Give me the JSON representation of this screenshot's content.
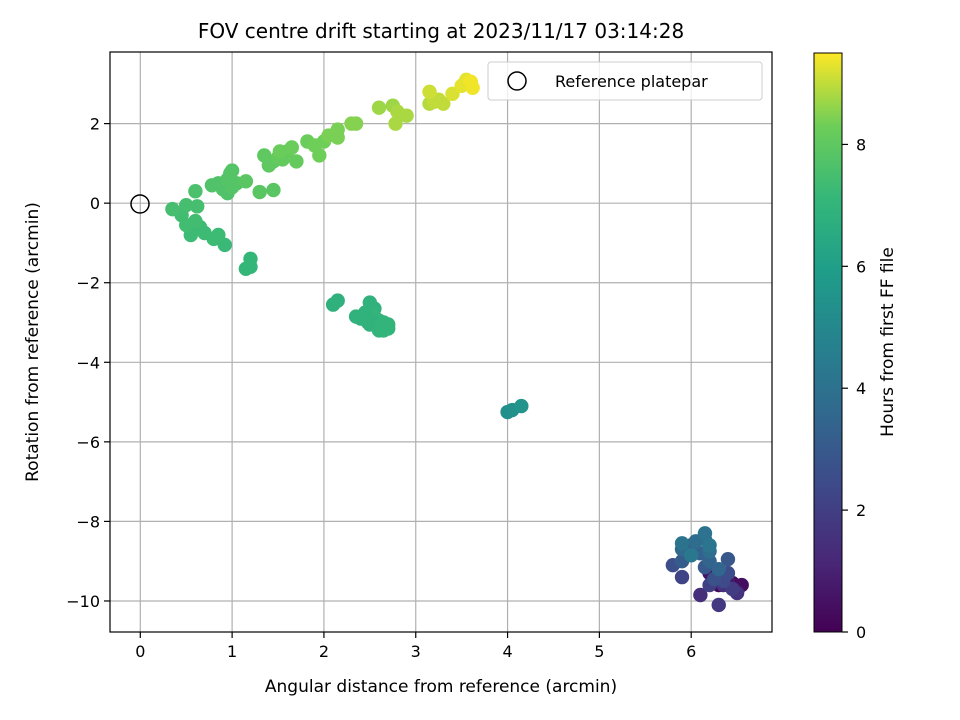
{
  "chart_data": {
    "type": "scatter",
    "title": "FOV centre drift starting at 2023/11/17 03:14:28",
    "xlabel": "Angular distance from reference (arcmin)",
    "ylabel": "Rotation from reference (arcmin)",
    "xlim": [
      -0.33,
      6.88
    ],
    "ylim": [
      -10.78,
      3.8
    ],
    "xticks": [
      0,
      1,
      2,
      3,
      4,
      5,
      6
    ],
    "yticks": [
      -10,
      -8,
      -6,
      -4,
      -2,
      0,
      2
    ],
    "xtick_labels": [
      "0",
      "1",
      "2",
      "3",
      "4",
      "5",
      "6"
    ],
    "ytick_labels": [
      "−10",
      "−8",
      "−6",
      "−4",
      "−2",
      "0",
      "2"
    ],
    "grid": true,
    "legend": {
      "placement": "top-right",
      "entries": [
        {
          "label": "Reference platepar",
          "marker": "open-circle"
        }
      ]
    },
    "reference_point": {
      "x": 0,
      "y": 0
    },
    "colorbar": {
      "label": "Hours from first FF file",
      "colormap": "viridis",
      "range": [
        0,
        9.5
      ],
      "ticks": [
        0,
        2,
        4,
        6,
        8
      ],
      "tick_labels": [
        "0",
        "2",
        "4",
        "6",
        "8"
      ]
    },
    "points": [
      [
        6.3,
        -9.6,
        0.2
      ],
      [
        6.45,
        -9.55,
        0.3
      ],
      [
        6.55,
        -9.6,
        0.4
      ],
      [
        6.5,
        -9.75,
        0.5
      ],
      [
        6.2,
        -9.3,
        0.6
      ],
      [
        6.4,
        -9.5,
        0.7
      ],
      [
        6.3,
        -9.4,
        1.2
      ],
      [
        6.1,
        -9.85,
        1.4
      ],
      [
        6.35,
        -9.6,
        1.5
      ],
      [
        6.5,
        -9.8,
        1.6
      ],
      [
        6.3,
        -10.1,
        1.8
      ],
      [
        6.45,
        -9.7,
        1.9
      ],
      [
        6.2,
        -9.6,
        2.0
      ],
      [
        5.9,
        -9.4,
        2.2
      ],
      [
        6.35,
        -9.5,
        2.4
      ],
      [
        6.4,
        -9.3,
        2.5
      ],
      [
        5.8,
        -9.1,
        2.6
      ],
      [
        6.25,
        -9.45,
        2.7
      ],
      [
        6.4,
        -8.95,
        2.9
      ],
      [
        6.15,
        -9.15,
        3.0
      ],
      [
        5.9,
        -9.0,
        3.1
      ],
      [
        6.0,
        -8.6,
        3.2
      ],
      [
        6.1,
        -8.8,
        3.3
      ],
      [
        6.2,
        -9.0,
        3.4
      ],
      [
        6.3,
        -9.2,
        3.5
      ],
      [
        5.9,
        -8.7,
        3.6
      ],
      [
        6.15,
        -8.45,
        3.7
      ],
      [
        6.05,
        -8.5,
        3.8
      ],
      [
        6.2,
        -8.75,
        3.9
      ],
      [
        6.15,
        -8.3,
        4.0
      ],
      [
        5.9,
        -8.55,
        4.1
      ],
      [
        6.2,
        -8.6,
        4.2
      ],
      [
        6.0,
        -8.85,
        4.3
      ],
      [
        4.0,
        -5.25,
        5.3
      ],
      [
        4.05,
        -5.2,
        5.4
      ],
      [
        4.15,
        -5.1,
        5.5
      ],
      [
        2.1,
        -2.55,
        6.8
      ],
      [
        2.15,
        -2.45,
        6.8
      ],
      [
        2.45,
        -2.75,
        6.9
      ],
      [
        2.5,
        -2.5,
        6.9
      ],
      [
        2.55,
        -2.65,
        6.9
      ],
      [
        2.6,
        -2.95,
        7.0
      ],
      [
        2.65,
        -3.0,
        7.0
      ],
      [
        2.7,
        -3.15,
        7.0
      ],
      [
        2.65,
        -3.2,
        7.0
      ],
      [
        2.5,
        -3.05,
        6.9
      ],
      [
        2.4,
        -2.9,
        6.9
      ],
      [
        2.6,
        -3.2,
        7.0
      ],
      [
        2.55,
        -2.85,
        7.0
      ],
      [
        2.45,
        -2.8,
        6.9
      ],
      [
        2.7,
        -3.05,
        7.0
      ],
      [
        2.35,
        -2.85,
        6.9
      ],
      [
        2.58,
        -3.1,
        7.0
      ],
      [
        2.52,
        -2.95,
        6.9
      ],
      [
        2.62,
        -3.08,
        7.0
      ],
      [
        2.48,
        -3.0,
        6.9
      ],
      [
        1.15,
        -1.65,
        7.1
      ],
      [
        1.2,
        -1.6,
        7.1
      ],
      [
        1.2,
        -1.4,
        7.1
      ],
      [
        0.92,
        -1.05,
        7.2
      ],
      [
        0.8,
        -0.9,
        7.3
      ],
      [
        0.85,
        -0.8,
        7.3
      ],
      [
        0.55,
        -0.8,
        7.3
      ],
      [
        0.7,
        -0.75,
        7.3
      ],
      [
        0.65,
        -0.6,
        7.3
      ],
      [
        0.5,
        -0.55,
        7.4
      ],
      [
        0.6,
        -0.45,
        7.4
      ],
      [
        0.45,
        -0.3,
        7.4
      ],
      [
        0.35,
        -0.15,
        7.5
      ],
      [
        0.5,
        -0.05,
        7.5
      ],
      [
        0.62,
        -0.08,
        7.5
      ],
      [
        0.6,
        0.3,
        7.6
      ],
      [
        0.78,
        0.45,
        7.7
      ],
      [
        0.9,
        0.35,
        7.7
      ],
      [
        0.85,
        0.5,
        7.7
      ],
      [
        0.95,
        0.25,
        7.7
      ],
      [
        1.0,
        0.4,
        7.8
      ],
      [
        0.95,
        0.6,
        7.8
      ],
      [
        1.05,
        0.5,
        7.8
      ],
      [
        0.98,
        0.75,
        7.8
      ],
      [
        1.0,
        0.82,
        7.8
      ],
      [
        1.15,
        0.55,
        7.9
      ],
      [
        1.3,
        0.28,
        7.9
      ],
      [
        1.45,
        0.33,
        7.9
      ],
      [
        1.35,
        1.2,
        8.0
      ],
      [
        1.4,
        0.95,
        8.0
      ],
      [
        1.45,
        1.05,
        8.0
      ],
      [
        1.5,
        1.15,
        8.1
      ],
      [
        1.55,
        1.1,
        8.1
      ],
      [
        1.6,
        1.3,
        8.1
      ],
      [
        1.7,
        1.05,
        8.1
      ],
      [
        1.65,
        1.4,
        8.2
      ],
      [
        1.52,
        1.3,
        8.2
      ],
      [
        1.82,
        1.55,
        8.2
      ],
      [
        1.9,
        1.45,
        8.3
      ],
      [
        1.95,
        1.2,
        8.3
      ],
      [
        2.0,
        1.55,
        8.3
      ],
      [
        2.05,
        1.7,
        8.4
      ],
      [
        2.15,
        1.65,
        8.4
      ],
      [
        2.15,
        1.85,
        8.4
      ],
      [
        2.3,
        2.0,
        8.5
      ],
      [
        2.35,
        2.0,
        8.5
      ],
      [
        2.6,
        2.4,
        8.7
      ],
      [
        2.75,
        2.45,
        8.7
      ],
      [
        2.8,
        2.3,
        8.8
      ],
      [
        2.78,
        2.0,
        8.8
      ],
      [
        2.9,
        2.2,
        8.8
      ],
      [
        3.15,
        2.5,
        8.9
      ],
      [
        3.2,
        2.55,
        9.0
      ],
      [
        3.25,
        2.6,
        9.0
      ],
      [
        3.3,
        2.5,
        9.0
      ],
      [
        3.15,
        2.8,
        9.1
      ],
      [
        3.4,
        2.75,
        9.2
      ],
      [
        3.5,
        2.95,
        9.3
      ],
      [
        3.55,
        3.1,
        9.3
      ],
      [
        3.62,
        2.9,
        9.4
      ],
      [
        3.6,
        3.05,
        9.4
      ]
    ]
  }
}
